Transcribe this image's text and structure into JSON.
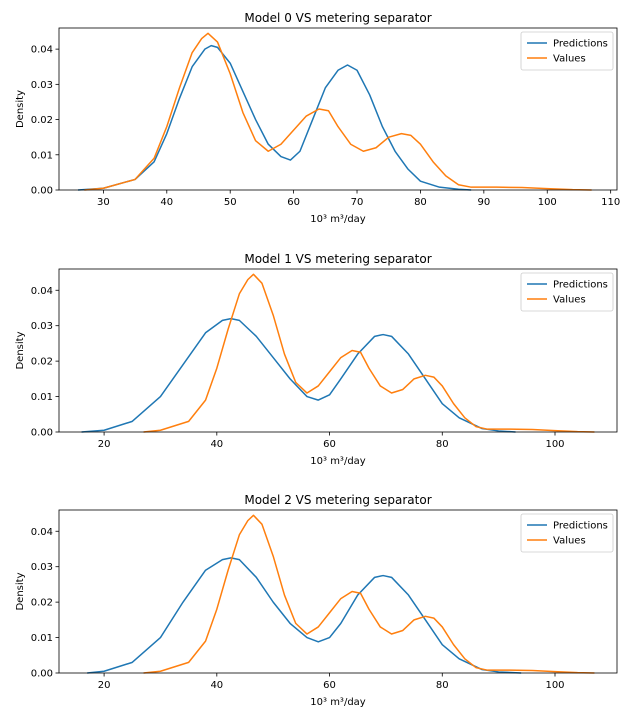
{
  "chart_data": [
    {
      "type": "line",
      "title": "Model 0 VS metering separator",
      "xlabel": "10³ m³/day",
      "ylabel": "Density",
      "xlim": [
        23,
        111
      ],
      "ylim": [
        0,
        0.046
      ],
      "xticks": [
        30,
        40,
        50,
        60,
        70,
        80,
        90,
        100,
        110
      ],
      "yticks": [
        0.0,
        0.01,
        0.02,
        0.03,
        0.04
      ],
      "grid": false,
      "legend_position": "top-right",
      "series": [
        {
          "name": "Predictions",
          "color": "#1f77b4",
          "points": [
            [
              26,
              0
            ],
            [
              30,
              0.0005
            ],
            [
              35,
              0.003
            ],
            [
              38,
              0.008
            ],
            [
              40,
              0.016
            ],
            [
              42,
              0.026
            ],
            [
              44,
              0.035
            ],
            [
              46,
              0.04
            ],
            [
              47,
              0.041
            ],
            [
              48,
              0.0405
            ],
            [
              50,
              0.036
            ],
            [
              52,
              0.028
            ],
            [
              54,
              0.02
            ],
            [
              56,
              0.013
            ],
            [
              58,
              0.0095
            ],
            [
              59.5,
              0.0085
            ],
            [
              61,
              0.011
            ],
            [
              63,
              0.02
            ],
            [
              65,
              0.029
            ],
            [
              67,
              0.034
            ],
            [
              68.5,
              0.0355
            ],
            [
              70,
              0.034
            ],
            [
              72,
              0.027
            ],
            [
              74,
              0.018
            ],
            [
              76,
              0.011
            ],
            [
              78,
              0.006
            ],
            [
              80,
              0.0025
            ],
            [
              83,
              0.0008
            ],
            [
              86,
              0.0002
            ],
            [
              88,
              0
            ]
          ]
        },
        {
          "name": "Values",
          "color": "#ff7f0e",
          "points": [
            [
              27,
              0
            ],
            [
              30,
              0.0005
            ],
            [
              35,
              0.003
            ],
            [
              38,
              0.009
            ],
            [
              40,
              0.018
            ],
            [
              42,
              0.029
            ],
            [
              44,
              0.039
            ],
            [
              45.5,
              0.043
            ],
            [
              46.5,
              0.0445
            ],
            [
              48,
              0.042
            ],
            [
              50,
              0.033
            ],
            [
              52,
              0.022
            ],
            [
              54,
              0.014
            ],
            [
              56,
              0.011
            ],
            [
              58,
              0.013
            ],
            [
              60,
              0.017
            ],
            [
              62,
              0.021
            ],
            [
              64,
              0.023
            ],
            [
              65.5,
              0.0225
            ],
            [
              67,
              0.018
            ],
            [
              69,
              0.013
            ],
            [
              71,
              0.011
            ],
            [
              73,
              0.012
            ],
            [
              75,
              0.015
            ],
            [
              77,
              0.016
            ],
            [
              78.5,
              0.0155
            ],
            [
              80,
              0.013
            ],
            [
              82,
              0.008
            ],
            [
              84,
              0.004
            ],
            [
              86,
              0.0015
            ],
            [
              88,
              0.0008
            ],
            [
              92,
              0.0008
            ],
            [
              96,
              0.0007
            ],
            [
              100,
              0.0004
            ],
            [
              104,
              0.0001
            ],
            [
              107,
              0
            ]
          ]
        }
      ]
    },
    {
      "type": "line",
      "title": "Model 1 VS metering separator",
      "xlabel": "10³ m³/day",
      "ylabel": "Density",
      "xlim": [
        12,
        111
      ],
      "ylim": [
        0,
        0.046
      ],
      "xticks": [
        20,
        40,
        60,
        80,
        100
      ],
      "yticks": [
        0.0,
        0.01,
        0.02,
        0.03,
        0.04
      ],
      "grid": false,
      "legend_position": "top-right",
      "series": [
        {
          "name": "Predictions",
          "color": "#1f77b4",
          "points": [
            [
              16,
              0
            ],
            [
              20,
              0.0005
            ],
            [
              25,
              0.003
            ],
            [
              30,
              0.01
            ],
            [
              34,
              0.019
            ],
            [
              38,
              0.028
            ],
            [
              41,
              0.0315
            ],
            [
              42.5,
              0.032
            ],
            [
              44,
              0.0315
            ],
            [
              47,
              0.027
            ],
            [
              50,
              0.021
            ],
            [
              53,
              0.015
            ],
            [
              56,
              0.01
            ],
            [
              58,
              0.009
            ],
            [
              60,
              0.0105
            ],
            [
              62,
              0.015
            ],
            [
              65,
              0.022
            ],
            [
              68,
              0.027
            ],
            [
              69.5,
              0.0275
            ],
            [
              71,
              0.027
            ],
            [
              74,
              0.022
            ],
            [
              77,
              0.015
            ],
            [
              80,
              0.008
            ],
            [
              83,
              0.004
            ],
            [
              87,
              0.001
            ],
            [
              90,
              0.0003
            ],
            [
              93,
              0
            ]
          ]
        },
        {
          "name": "Values",
          "color": "#ff7f0e",
          "points": [
            [
              27,
              0
            ],
            [
              30,
              0.0005
            ],
            [
              35,
              0.003
            ],
            [
              38,
              0.009
            ],
            [
              40,
              0.018
            ],
            [
              42,
              0.029
            ],
            [
              44,
              0.039
            ],
            [
              45.5,
              0.043
            ],
            [
              46.5,
              0.0445
            ],
            [
              48,
              0.042
            ],
            [
              50,
              0.033
            ],
            [
              52,
              0.022
            ],
            [
              54,
              0.014
            ],
            [
              56,
              0.011
            ],
            [
              58,
              0.013
            ],
            [
              60,
              0.017
            ],
            [
              62,
              0.021
            ],
            [
              64,
              0.023
            ],
            [
              65.5,
              0.0225
            ],
            [
              67,
              0.018
            ],
            [
              69,
              0.013
            ],
            [
              71,
              0.011
            ],
            [
              73,
              0.012
            ],
            [
              75,
              0.015
            ],
            [
              77,
              0.016
            ],
            [
              78.5,
              0.0155
            ],
            [
              80,
              0.013
            ],
            [
              82,
              0.008
            ],
            [
              84,
              0.004
            ],
            [
              86,
              0.0015
            ],
            [
              88,
              0.0008
            ],
            [
              92,
              0.0008
            ],
            [
              96,
              0.0007
            ],
            [
              100,
              0.0004
            ],
            [
              104,
              0.0001
            ],
            [
              107,
              0
            ]
          ]
        }
      ]
    },
    {
      "type": "line",
      "title": "Model 2 VS metering separator",
      "xlabel": "10³ m³/day",
      "ylabel": "Density",
      "xlim": [
        12,
        111
      ],
      "ylim": [
        0,
        0.046
      ],
      "xticks": [
        20,
        40,
        60,
        80,
        100
      ],
      "yticks": [
        0.0,
        0.01,
        0.02,
        0.03,
        0.04
      ],
      "grid": false,
      "legend_position": "top-right",
      "series": [
        {
          "name": "Predictions",
          "color": "#1f77b4",
          "points": [
            [
              17,
              0
            ],
            [
              20,
              0.0005
            ],
            [
              25,
              0.003
            ],
            [
              30,
              0.01
            ],
            [
              34,
              0.02
            ],
            [
              38,
              0.029
            ],
            [
              41,
              0.032
            ],
            [
              42.5,
              0.0325
            ],
            [
              44,
              0.032
            ],
            [
              47,
              0.027
            ],
            [
              50,
              0.02
            ],
            [
              53,
              0.014
            ],
            [
              56,
              0.01
            ],
            [
              58,
              0.0088
            ],
            [
              60,
              0.01
            ],
            [
              62,
              0.014
            ],
            [
              65,
              0.022
            ],
            [
              68,
              0.027
            ],
            [
              69.5,
              0.0275
            ],
            [
              71,
              0.027
            ],
            [
              74,
              0.022
            ],
            [
              77,
              0.015
            ],
            [
              80,
              0.008
            ],
            [
              83,
              0.004
            ],
            [
              87,
              0.001
            ],
            [
              90,
              0.0003
            ],
            [
              94,
              0
            ]
          ]
        },
        {
          "name": "Values",
          "color": "#ff7f0e",
          "points": [
            [
              27,
              0
            ],
            [
              30,
              0.0005
            ],
            [
              35,
              0.003
            ],
            [
              38,
              0.009
            ],
            [
              40,
              0.018
            ],
            [
              42,
              0.029
            ],
            [
              44,
              0.039
            ],
            [
              45.5,
              0.043
            ],
            [
              46.5,
              0.0445
            ],
            [
              48,
              0.042
            ],
            [
              50,
              0.033
            ],
            [
              52,
              0.022
            ],
            [
              54,
              0.014
            ],
            [
              56,
              0.011
            ],
            [
              58,
              0.013
            ],
            [
              60,
              0.017
            ],
            [
              62,
              0.021
            ],
            [
              64,
              0.023
            ],
            [
              65.5,
              0.0225
            ],
            [
              67,
              0.018
            ],
            [
              69,
              0.013
            ],
            [
              71,
              0.011
            ],
            [
              73,
              0.012
            ],
            [
              75,
              0.015
            ],
            [
              77,
              0.016
            ],
            [
              78.5,
              0.0155
            ],
            [
              80,
              0.013
            ],
            [
              82,
              0.008
            ],
            [
              84,
              0.004
            ],
            [
              86,
              0.0015
            ],
            [
              88,
              0.0008
            ],
            [
              92,
              0.0008
            ],
            [
              96,
              0.0007
            ],
            [
              100,
              0.0004
            ],
            [
              104,
              0.0001
            ],
            [
              107,
              0
            ]
          ]
        }
      ]
    }
  ]
}
